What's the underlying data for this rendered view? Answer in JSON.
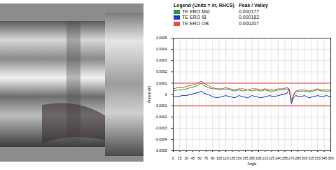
{
  "chart_data": {
    "type": "line",
    "legend_title": "Legend (Units = in, RHCS)",
    "legend_value_header": "Peak / Valley",
    "legend": "top",
    "x_label": "Angle",
    "y_label": "Runout (in)",
    "grid": true,
    "xlim": [
      0,
      360
    ],
    "xticks": [
      0,
      15,
      30,
      45,
      60,
      75,
      90,
      105,
      120,
      135,
      150,
      165,
      180,
      195,
      210,
      225,
      240,
      255,
      270,
      285,
      300,
      315,
      330,
      345,
      360
    ],
    "ylim": [
      -0.0005,
      0.0005
    ],
    "yticks": [
      -0.0005,
      -0.0004,
      -0.0003,
      -0.0002,
      -0.0001,
      0,
      0.0001,
      0.0002,
      0.0003,
      0.0004,
      0.0005
    ],
    "reference_lines": [
      0.0001,
      -0.0001
    ],
    "x": [
      0,
      10,
      20,
      30,
      40,
      50,
      60,
      65,
      70,
      80,
      90,
      100,
      110,
      120,
      130,
      140,
      150,
      160,
      170,
      180,
      190,
      200,
      210,
      220,
      230,
      240,
      250,
      260,
      265,
      270,
      275,
      280,
      290,
      300,
      310,
      320,
      330,
      340,
      350,
      360
    ],
    "series": [
      {
        "name": "TE ERO Mid",
        "color": "#2e9e2e",
        "peak_valley": 0.000177,
        "values": [
          3e-05,
          4e-05,
          4e-05,
          5e-05,
          6e-05,
          7e-05,
          9e-05,
          0.0001,
          8e-05,
          6e-05,
          5e-05,
          5e-05,
          4e-05,
          5e-05,
          4e-05,
          3e-05,
          4e-05,
          3e-05,
          4e-05,
          3e-05,
          4e-05,
          3e-05,
          4e-05,
          3e-05,
          3e-05,
          4e-05,
          4e-05,
          5e-05,
          4e-05,
          -7e-05,
          -1e-05,
          2e-05,
          3e-05,
          3e-05,
          2e-05,
          3e-05,
          4e-05,
          3e-05,
          3e-05,
          3e-05
        ]
      },
      {
        "name": "TE ERO IB",
        "color": "#2233cc",
        "peak_valley": 0.000182,
        "values": [
          -2e-05,
          -2e-05,
          -1e-05,
          -1e-05,
          0,
          1e-05,
          2e-05,
          3e-05,
          1e-05,
          0,
          -2e-05,
          -3e-05,
          -2e-05,
          -1e-05,
          -2e-05,
          -3e-05,
          -1e-05,
          -2e-05,
          -3e-05,
          -1e-05,
          -2e-05,
          -3e-05,
          -2e-05,
          -1e-05,
          -2e-05,
          -1e-05,
          0,
          1e-05,
          5e-05,
          -8e-05,
          -3e-05,
          -1e-05,
          -2e-05,
          -1e-05,
          -3e-05,
          -2e-05,
          -1e-05,
          -2e-05,
          -1e-05,
          -2e-05
        ]
      },
      {
        "name": "TE ERO OB",
        "color": "#e0504a",
        "peak_valley": 0.000207,
        "values": [
          5e-05,
          6e-05,
          6e-05,
          7e-05,
          8e-05,
          9e-05,
          0.00011,
          0.00012,
          0.0001,
          8e-05,
          6e-05,
          5e-05,
          5e-05,
          6e-05,
          5e-05,
          4e-05,
          5e-05,
          5e-05,
          4e-05,
          5e-05,
          5e-05,
          4e-05,
          5e-05,
          4e-05,
          4e-05,
          5e-05,
          5e-05,
          6e-05,
          5e-05,
          -5e-05,
          0,
          3e-05,
          4e-05,
          4e-05,
          3e-05,
          4e-05,
          5e-05,
          4e-05,
          4e-05,
          4e-05
        ]
      }
    ]
  }
}
